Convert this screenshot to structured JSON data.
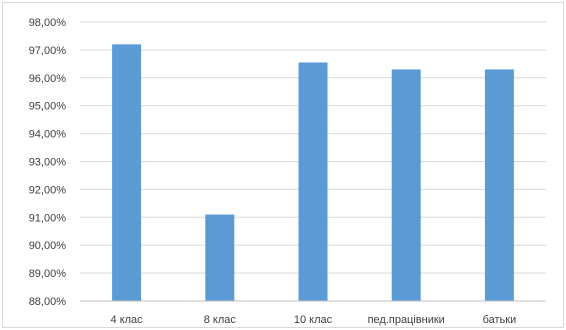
{
  "chart_data": {
    "type": "bar",
    "categories": [
      "4 клас",
      "8 клас",
      "10 клас",
      "пед.працівники",
      "батьки"
    ],
    "values": [
      97.2,
      91.1,
      96.55,
      96.3,
      96.3
    ],
    "y_tick_labels": [
      "88,00%",
      "89,00%",
      "90,00%",
      "91,00%",
      "92,00%",
      "93,00%",
      "94,00%",
      "95,00%",
      "96,00%",
      "97,00%",
      "98,00%"
    ],
    "ylim": [
      88,
      98
    ],
    "y_unit": "%",
    "grid": true,
    "legend": "none",
    "colors": {
      "bar": "#5b9bd5",
      "gridline": "#d9d9d9",
      "axis": "#bfbfbf",
      "text": "#404040",
      "frame": "#d9d9d9"
    }
  }
}
